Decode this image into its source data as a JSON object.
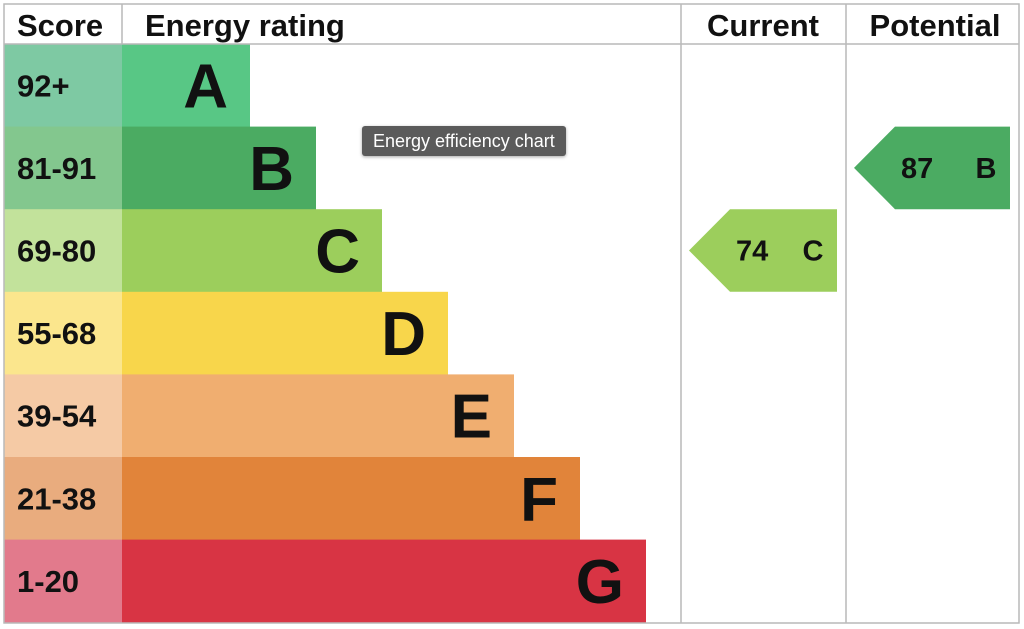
{
  "tooltip": "Energy efficiency chart",
  "chart_data": {
    "type": "bar",
    "headers": {
      "score": "Score",
      "rating": "Energy rating",
      "current": "Current",
      "potential": "Potential"
    },
    "bands": [
      {
        "letter": "A",
        "range": "92+",
        "min": 92,
        "max": 100,
        "color": "#58c785",
        "range_color": "#7ec9a3"
      },
      {
        "letter": "B",
        "range": "81-91",
        "min": 81,
        "max": 91,
        "color": "#4bab62",
        "range_color": "#83c78e"
      },
      {
        "letter": "C",
        "range": "69-80",
        "min": 69,
        "max": 80,
        "color": "#9cce5c",
        "range_color": "#c2e29b"
      },
      {
        "letter": "D",
        "range": "55-68",
        "min": 55,
        "max": 68,
        "color": "#f8d64b",
        "range_color": "#fbe68d"
      },
      {
        "letter": "E",
        "range": "39-54",
        "min": 39,
        "max": 54,
        "color": "#f0ae70",
        "range_color": "#f5caa5"
      },
      {
        "letter": "F",
        "range": "21-38",
        "min": 21,
        "max": 38,
        "color": "#e1843a",
        "range_color": "#e9ac7e"
      },
      {
        "letter": "G",
        "range": "1-20",
        "min": 1,
        "max": 20,
        "color": "#d83444",
        "range_color": "#e27a8c"
      }
    ],
    "current": {
      "value": 74,
      "letter": "C",
      "color": "#9cce5c"
    },
    "potential": {
      "value": 87,
      "letter": "B",
      "color": "#4bab62"
    }
  }
}
